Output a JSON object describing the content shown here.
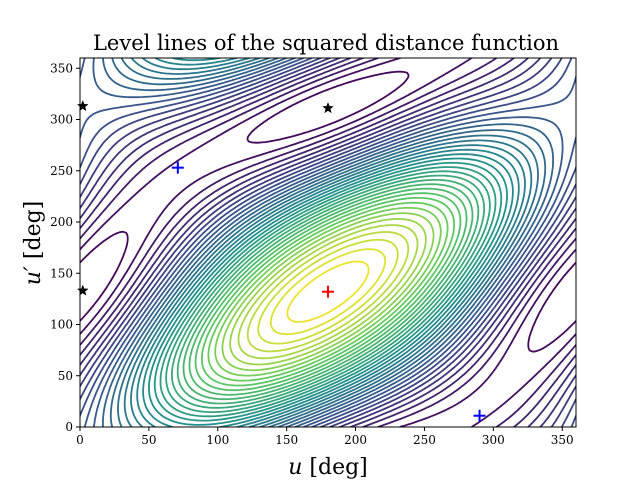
{
  "chart_data": {
    "type": "contour",
    "title": "Level lines of the squared distance function",
    "xlabel": "u [deg]",
    "ylabel": "u′ [deg]",
    "xlabel_var": "u",
    "ylabel_var": "u′",
    "label_unit": " [deg]",
    "xlim": [
      0,
      360
    ],
    "ylim": [
      0,
      360
    ],
    "x_ticks": [
      0,
      50,
      100,
      150,
      200,
      250,
      300,
      350
    ],
    "y_ticks": [
      0,
      50,
      100,
      150,
      200,
      250,
      300,
      350
    ],
    "grid": false,
    "legend": "none",
    "colormap": [
      "#440154",
      "#3b528b",
      "#21918c",
      "#5ec962",
      "#fde725"
    ],
    "levels": 38,
    "points": [
      {
        "kind": "maximum",
        "marker": "plus",
        "color": "#ff0000",
        "x": 180,
        "y": 132
      },
      {
        "kind": "minimum",
        "marker": "plus",
        "color": "#0000ff",
        "x": 71,
        "y": 253
      },
      {
        "kind": "minimum",
        "marker": "plus",
        "color": "#0000ff",
        "x": 290,
        "y": 11
      },
      {
        "kind": "saddle",
        "marker": "star",
        "color": "#000000",
        "x": 2,
        "y": 313
      },
      {
        "kind": "saddle",
        "marker": "star",
        "color": "#000000",
        "x": 180,
        "y": 311
      },
      {
        "kind": "saddle",
        "marker": "star",
        "color": "#000000",
        "x": 2,
        "y": 133
      }
    ]
  }
}
